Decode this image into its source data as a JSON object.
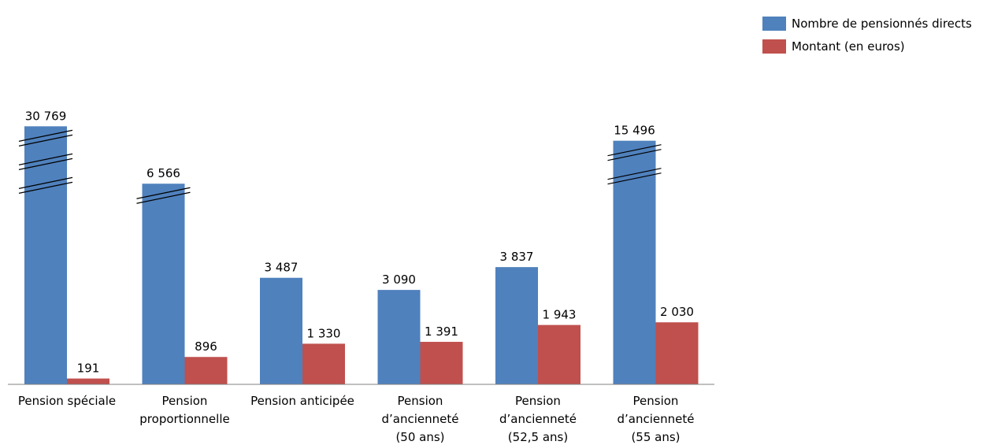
{
  "chart_data": {
    "type": "bar",
    "categories": [
      [
        "Pension spéciale"
      ],
      [
        "Pension",
        "proportionnelle"
      ],
      [
        "Pension anticipée"
      ],
      [
        "Pension",
        "d’ancienneté",
        "(50 ans)"
      ],
      [
        "Pension",
        "d’ancienneté",
        "(52,5 ans)"
      ],
      [
        "Pension",
        "d’ancienneté",
        "(55 ans)"
      ]
    ],
    "series": [
      {
        "name": "Nombre de pensionnés directs",
        "color": "#4F81BD",
        "values": [
          30769,
          6566,
          3487,
          3090,
          3837,
          15496
        ],
        "labels": [
          "30 769",
          "6 566",
          "3 487",
          "3 090",
          "3 837",
          "15 496"
        ]
      },
      {
        "name": "Montant (en euros)",
        "color": "#C0504D",
        "values": [
          191,
          896,
          1330,
          1391,
          1943,
          2030
        ],
        "labels": [
          "191",
          "896",
          "1 330",
          "1 391",
          "1 943",
          "2 030"
        ]
      }
    ],
    "axis_breaks": [
      3,
      1,
      0,
      0,
      0,
      2
    ],
    "legend_position": "top-right",
    "grid": false
  }
}
